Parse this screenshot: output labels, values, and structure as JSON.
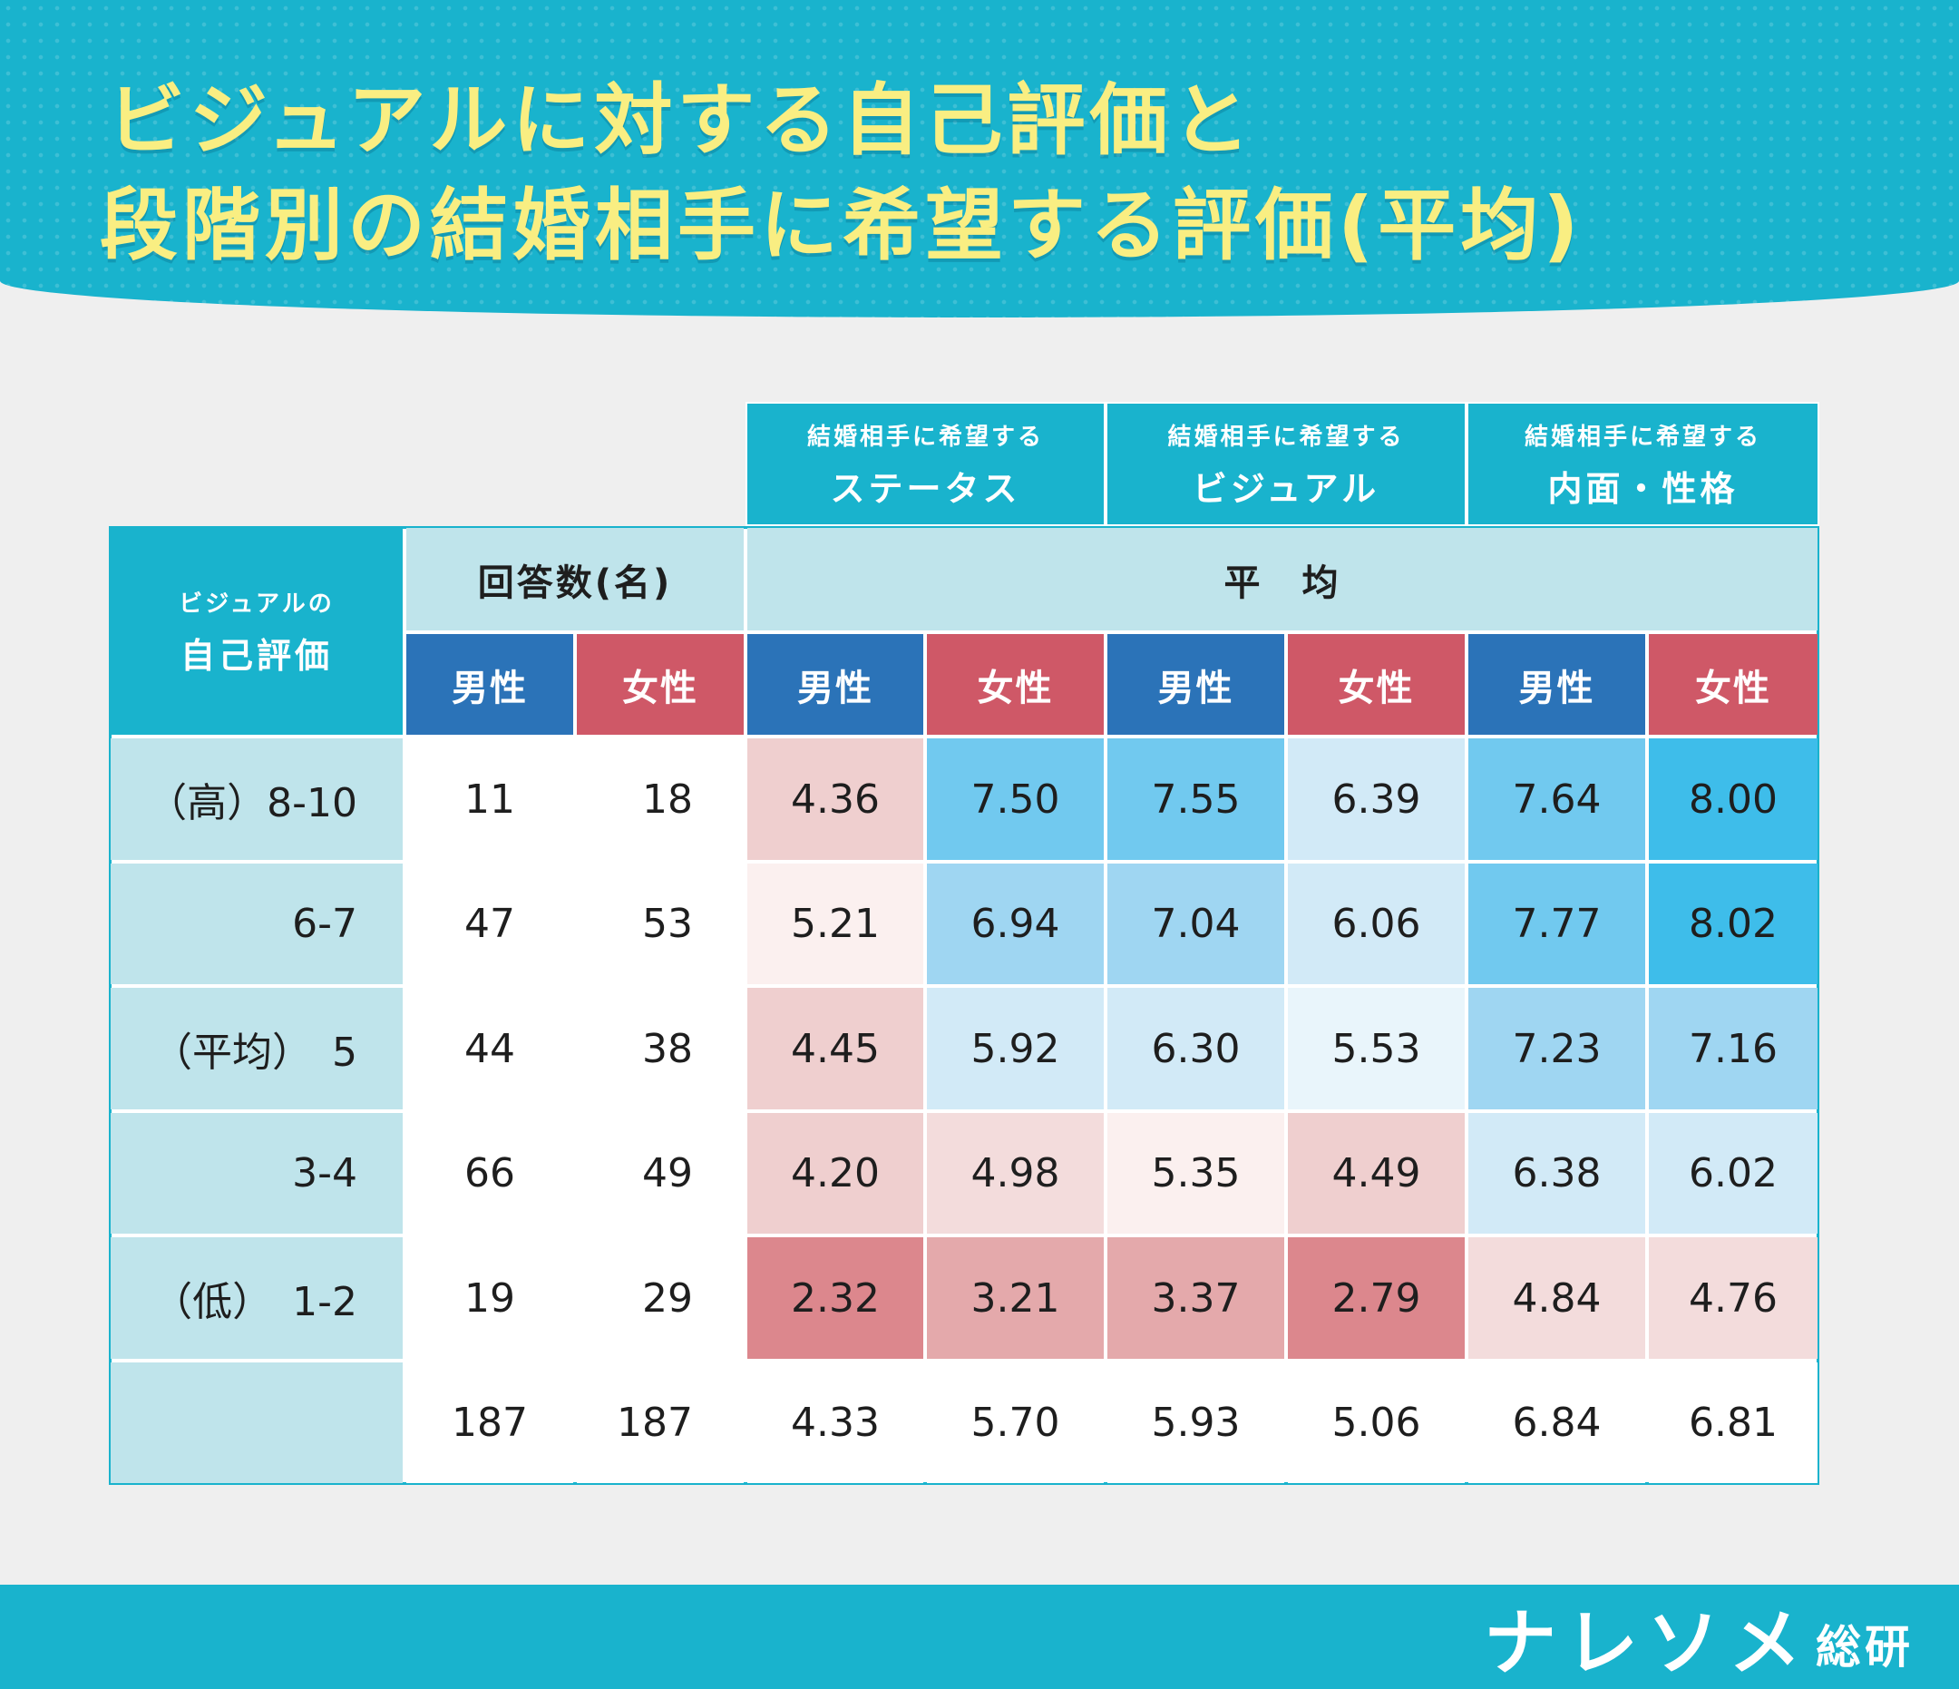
{
  "title": {
    "line1": "ビジュアルに対する自己評価と",
    "line2": "段階別の結婚相手に希望する評価(平均)"
  },
  "chart_data": {
    "type": "table",
    "title": "ビジュアルに対する自己評価と段階別の結婚相手に希望する評価(平均)",
    "row_header": {
      "small": "ビジュアルの",
      "big": "自己評価"
    },
    "count_header": "回答数(名)",
    "avg_header": "平　均",
    "groups": [
      {
        "small": "結婚相手に希望する",
        "big": "ステータス"
      },
      {
        "small": "結婚相手に希望する",
        "big": "ビジュアル"
      },
      {
        "small": "結婚相手に希望する",
        "big": "内面・性格"
      }
    ],
    "sub_headers": [
      "男性",
      "女性",
      "男性",
      "女性",
      "男性",
      "女性",
      "男性",
      "女性"
    ],
    "columns": [
      "count_male",
      "count_female",
      "status_male",
      "status_female",
      "visual_male",
      "visual_female",
      "inner_male",
      "inner_female"
    ],
    "rows": [
      {
        "label": "（高）8-10",
        "values": [
          "11",
          "18",
          "4.36",
          "7.50",
          "7.55",
          "6.39",
          "7.64",
          "8.00"
        ]
      },
      {
        "label": "6-7",
        "values": [
          "47",
          "53",
          "5.21",
          "6.94",
          "7.04",
          "6.06",
          "7.77",
          "8.02"
        ]
      },
      {
        "label": "（平均）　5",
        "values": [
          "44",
          "38",
          "4.45",
          "5.92",
          "6.30",
          "5.53",
          "7.23",
          "7.16"
        ]
      },
      {
        "label": "3-4",
        "values": [
          "66",
          "49",
          "4.20",
          "4.98",
          "5.35",
          "4.49",
          "6.38",
          "6.02"
        ]
      },
      {
        "label": "（低）　1-2",
        "values": [
          "19",
          "29",
          "2.32",
          "3.21",
          "3.37",
          "2.79",
          "4.84",
          "4.76"
        ]
      }
    ],
    "total": {
      "label": "",
      "values": [
        "187",
        "187",
        "4.33",
        "5.70",
        "5.93",
        "5.06",
        "6.84",
        "6.81"
      ]
    },
    "colors": {
      "teal": "#19b3cd",
      "light_teal": "#bfe4eb",
      "male": "#2b73b8",
      "female": "#cf5867",
      "title_yellow": "#f9ee82"
    }
  },
  "logo": {
    "main": "ナレソメ",
    "sub": "総研"
  }
}
